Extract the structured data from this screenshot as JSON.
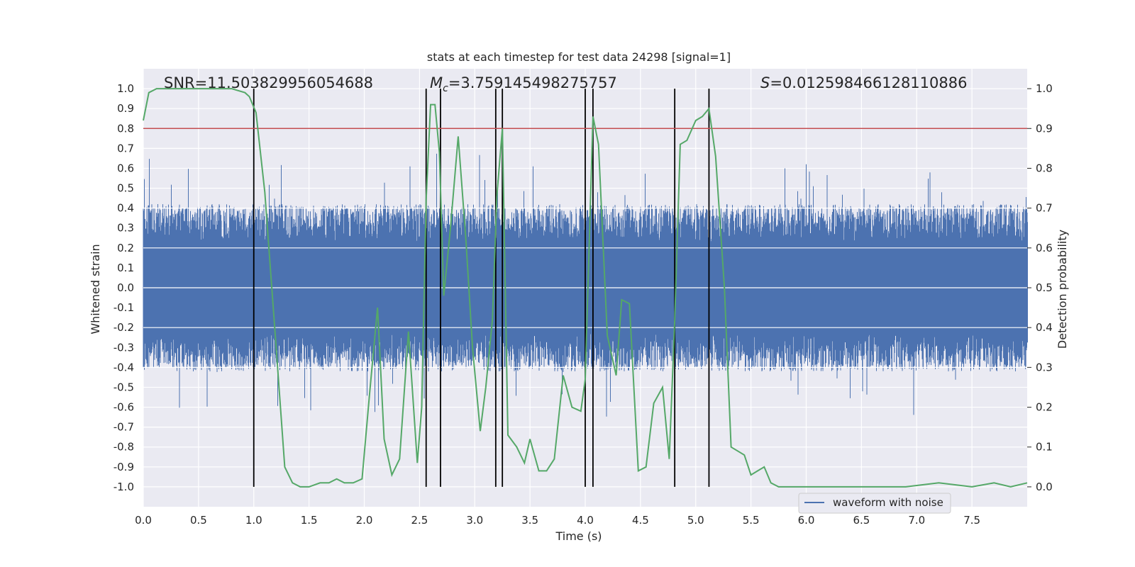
{
  "chart_data": {
    "type": "line",
    "title": "stats at each timestep for test data 24298 [signal=1]",
    "xlabel": "Time (s)",
    "ylabel": "Whitened strain",
    "y2label": "Detection probability",
    "xlim": [
      0.0,
      8.0
    ],
    "ylim": [
      -1.1,
      1.1
    ],
    "y2lim": [
      -0.05,
      1.05
    ],
    "grid": true,
    "legend_position": "lower-right",
    "x_ticks": [
      "0.0",
      "0.5",
      "1.0",
      "1.5",
      "2.0",
      "2.5",
      "3.0",
      "3.5",
      "4.0",
      "4.5",
      "5.0",
      "5.5",
      "6.0",
      "6.5",
      "7.0",
      "7.5"
    ],
    "y_ticks": [
      "1.0",
      "0.9",
      "0.8",
      "0.7",
      "0.6",
      "0.5",
      "0.4",
      "0.3",
      "0.2",
      "0.1",
      "0.0",
      "-0.1",
      "-0.2",
      "-0.3",
      "-0.4",
      "-0.5",
      "-0.6",
      "-0.7",
      "-0.8",
      "-0.9",
      "-1.0"
    ],
    "y2_ticks": [
      "1.0",
      "0.9",
      "0.8",
      "0.7",
      "0.6",
      "0.5",
      "0.4",
      "0.3",
      "0.2",
      "0.1",
      "0.0"
    ],
    "annotations": {
      "snr": "SNR=11.503829956054688",
      "mc_symbol": "M",
      "mc_sub": "c",
      "mc_value": "=3.759145498275757",
      "s_symbol": "S",
      "s_value": "=0.012598466128110886"
    },
    "threshold": {
      "axis": "y2",
      "value": 0.9,
      "color": "#c44e52"
    },
    "vertical_lines": [
      1.0,
      2.56,
      2.69,
      3.19,
      3.25,
      4.0,
      4.07,
      4.81,
      5.12
    ],
    "vertical_line_range_y2": [
      0.0,
      1.0
    ],
    "series": [
      {
        "name": "waveform with noise",
        "color": "#4c72b0",
        "envelope_upper": 0.42,
        "envelope_lower": -0.42
      },
      {
        "color": "#55a868",
        "axis": "y2",
        "x": [
          0.0,
          0.05,
          0.12,
          0.25,
          0.5,
          0.8,
          0.92,
          0.96,
          1.02,
          1.1,
          1.2,
          1.28,
          1.35,
          1.42,
          1.5,
          1.6,
          1.68,
          1.75,
          1.82,
          1.9,
          1.98,
          2.05,
          2.12,
          2.18,
          2.25,
          2.32,
          2.4,
          2.48,
          2.52,
          2.56,
          2.6,
          2.64,
          2.68,
          2.72,
          2.78,
          2.85,
          2.92,
          2.98,
          3.05,
          3.1,
          3.16,
          3.2,
          3.25,
          3.3,
          3.38,
          3.45,
          3.5,
          3.58,
          3.65,
          3.72,
          3.8,
          3.88,
          3.96,
          4.0,
          4.07,
          4.12,
          4.2,
          4.28,
          4.33,
          4.4,
          4.48,
          4.55,
          4.62,
          4.7,
          4.76,
          4.81,
          4.86,
          4.92,
          5.0,
          5.06,
          5.12,
          5.18,
          5.26,
          5.32,
          5.38,
          5.44,
          5.5,
          5.56,
          5.62,
          5.68,
          5.75,
          5.85,
          6.0,
          6.3,
          6.6,
          6.9,
          7.2,
          7.5,
          7.7,
          7.85,
          8.0
        ],
        "values": [
          0.92,
          0.99,
          1.0,
          1.0,
          1.0,
          1.0,
          0.99,
          0.98,
          0.94,
          0.74,
          0.36,
          0.05,
          0.01,
          0.0,
          0.0,
          0.01,
          0.01,
          0.02,
          0.01,
          0.01,
          0.02,
          0.24,
          0.45,
          0.12,
          0.03,
          0.07,
          0.39,
          0.06,
          0.2,
          0.72,
          0.96,
          0.96,
          0.84,
          0.48,
          0.65,
          0.88,
          0.62,
          0.35,
          0.14,
          0.25,
          0.42,
          0.73,
          0.9,
          0.13,
          0.1,
          0.06,
          0.12,
          0.04,
          0.04,
          0.07,
          0.28,
          0.2,
          0.19,
          0.27,
          0.93,
          0.86,
          0.38,
          0.28,
          0.47,
          0.46,
          0.04,
          0.05,
          0.21,
          0.25,
          0.07,
          0.42,
          0.86,
          0.87,
          0.92,
          0.93,
          0.95,
          0.83,
          0.5,
          0.1,
          0.09,
          0.08,
          0.03,
          0.04,
          0.05,
          0.01,
          0.0,
          0.0,
          0.0,
          0.0,
          0.0,
          0.0,
          0.01,
          0.0,
          0.01,
          0.0,
          0.01
        ]
      }
    ]
  }
}
